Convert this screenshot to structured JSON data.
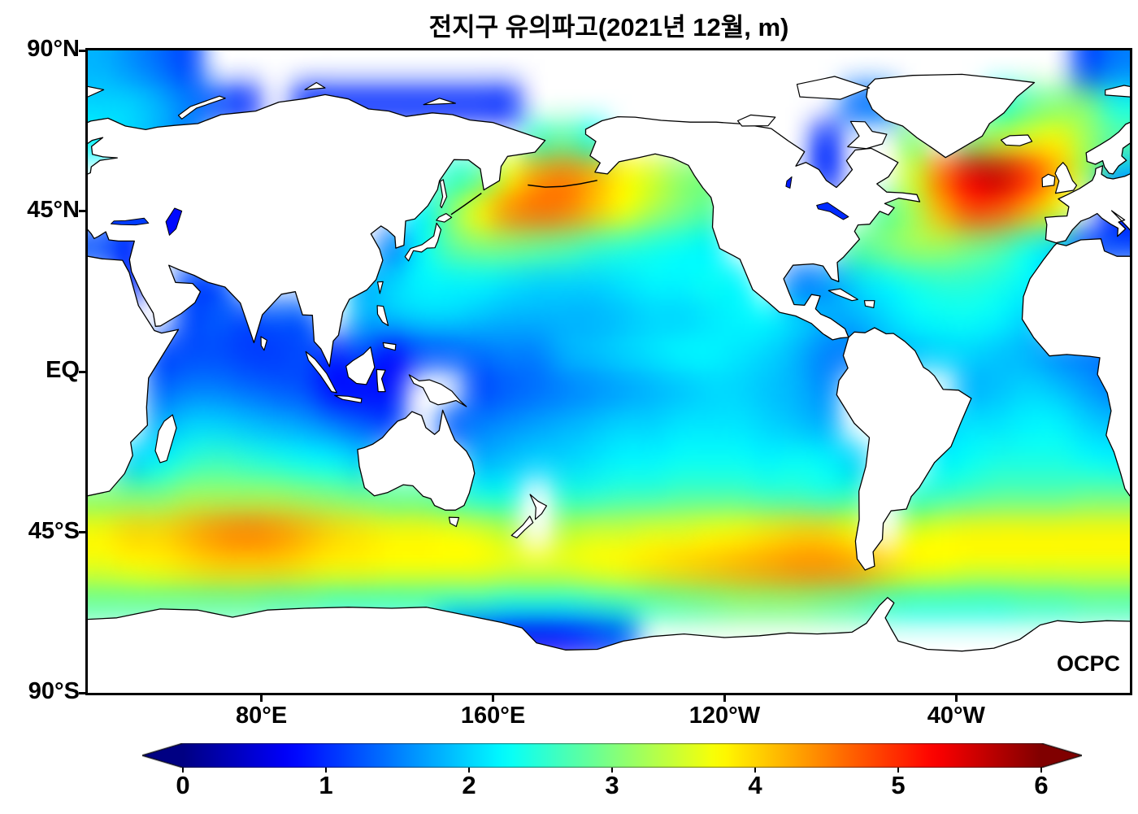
{
  "page": {
    "watermark": "OCPC"
  },
  "colors": {
    "background": "#ffffff",
    "text": "#000000",
    "coastline": "#000000"
  },
  "chart_data": {
    "type": "heatmap",
    "title": "전지구 유의파고(2021년 12월, m)",
    "variable": "significant wave height",
    "units": "m",
    "value_range": [
      0,
      6
    ],
    "colormap": {
      "name": "jet",
      "under": "#000083",
      "over": "#800000",
      "stops": [
        {
          "v": 0,
          "c": "#000083"
        },
        {
          "v": 0.75,
          "c": "#0000ff"
        },
        {
          "v": 2.25,
          "c": "#00ffff"
        },
        {
          "v": 3.75,
          "c": "#ffff00"
        },
        {
          "v": 5.25,
          "c": "#ff0000"
        },
        {
          "v": 6,
          "c": "#800000"
        }
      ]
    },
    "colorbar_ticks": [
      "0",
      "1",
      "2",
      "3",
      "4",
      "5",
      "6"
    ],
    "x_ticks": [
      {
        "label": "80°E",
        "lon": 80
      },
      {
        "label": "160°E",
        "lon": 160
      },
      {
        "label": "120°W",
        "lon": 240
      },
      {
        "label": "40°W",
        "lon": 320
      }
    ],
    "y_ticks": [
      {
        "label": "90°N",
        "lat": 90
      },
      {
        "label": "45°N",
        "lat": 45
      },
      {
        "label": "EQ",
        "lat": 0
      },
      {
        "label": "45°S",
        "lat": -45
      },
      {
        "label": "90°S",
        "lat": -90
      }
    ],
    "lon_range": [
      20,
      380
    ],
    "lat_range": [
      -90,
      90
    ],
    "lat_centers": [
      85,
      75,
      65,
      55,
      45,
      35,
      25,
      15,
      5,
      -5,
      -15,
      -25,
      -35,
      -45,
      -55,
      -65,
      -75,
      -85
    ],
    "lon_centers": [
      25,
      35,
      45,
      55,
      65,
      75,
      85,
      95,
      105,
      115,
      125,
      135,
      145,
      155,
      165,
      175,
      185,
      195,
      205,
      215,
      225,
      235,
      245,
      255,
      265,
      275,
      285,
      295,
      305,
      315,
      325,
      335,
      345,
      355,
      365,
      375
    ],
    "values_m": [
      [
        1.8,
        1.6,
        1.4,
        1.2,
        null,
        null,
        null,
        null,
        null,
        null,
        null,
        null,
        null,
        null,
        null,
        null,
        null,
        null,
        null,
        null,
        null,
        null,
        null,
        null,
        null,
        null,
        null,
        null,
        null,
        null,
        null,
        null,
        null,
        null,
        1.2,
        1.5
      ],
      [
        2.0,
        2.0,
        1.8,
        1.5,
        1.2,
        1.0,
        null,
        1.0,
        1.0,
        1.0,
        1.0,
        1.0,
        1.0,
        1.0,
        1.0,
        null,
        null,
        null,
        null,
        null,
        null,
        null,
        null,
        null,
        null,
        null,
        1.4,
        1.5,
        null,
        null,
        null,
        2.4,
        2.8,
        3.0,
        3.0,
        2.4
      ],
      [
        2.2,
        2.0,
        1.8,
        1.5,
        null,
        null,
        null,
        null,
        null,
        null,
        null,
        null,
        null,
        null,
        null,
        2.6,
        2.8,
        2.4,
        null,
        null,
        null,
        null,
        null,
        null,
        null,
        1.0,
        null,
        null,
        3.0,
        null,
        3.0,
        3.4,
        3.6,
        3.8,
        3.2,
        2.8
      ],
      [
        null,
        null,
        null,
        null,
        null,
        null,
        null,
        null,
        null,
        null,
        null,
        null,
        2.5,
        2.7,
        3.6,
        4.3,
        4.5,
        4.2,
        3.8,
        3.5,
        3.1,
        3.0,
        null,
        null,
        null,
        1.0,
        null,
        null,
        3.5,
        4.6,
        5.4,
        5.6,
        5.0,
        4.2,
        3.2,
        1.8
      ],
      [
        null,
        1.2,
        null,
        null,
        null,
        null,
        null,
        null,
        null,
        null,
        null,
        2.2,
        3.0,
        3.8,
        4.4,
        4.6,
        4.5,
        4.1,
        3.7,
        3.3,
        3.0,
        2.8,
        null,
        null,
        null,
        null,
        null,
        2.8,
        3.2,
        4.2,
        4.8,
        4.7,
        4.2,
        3.6,
        null,
        1.0
      ],
      [
        1.2,
        1.0,
        null,
        null,
        null,
        null,
        null,
        null,
        null,
        null,
        1.5,
        2.2,
        2.8,
        3.0,
        3.0,
        2.9,
        2.8,
        2.6,
        2.5,
        2.4,
        2.3,
        2.2,
        null,
        null,
        null,
        null,
        2.8,
        3.0,
        3.2,
        3.2,
        3.0,
        2.8,
        2.4,
        2.0,
        1.2,
        1.2
      ],
      [
        null,
        1.0,
        null,
        1.2,
        1.2,
        null,
        null,
        null,
        null,
        1.8,
        2.0,
        2.2,
        2.2,
        2.2,
        2.1,
        2.0,
        2.0,
        2.0,
        2.1,
        2.2,
        2.2,
        2.3,
        2.2,
        null,
        1.5,
        1.6,
        2.0,
        2.2,
        2.4,
        2.5,
        2.5,
        2.4,
        2.2,
        2.0,
        null,
        null
      ],
      [
        null,
        null,
        null,
        1.2,
        1.3,
        1.2,
        1.3,
        1.3,
        null,
        1.8,
        1.9,
        2.0,
        2.0,
        1.9,
        1.8,
        1.8,
        1.8,
        1.8,
        1.9,
        2.0,
        2.0,
        2.1,
        2.2,
        2.2,
        2.0,
        1.8,
        1.8,
        2.0,
        2.2,
        2.3,
        2.3,
        2.2,
        2.0,
        null,
        null,
        null
      ],
      [
        null,
        null,
        1.2,
        1.2,
        1.2,
        1.1,
        1.1,
        1.2,
        1.0,
        1.2,
        0.8,
        1.2,
        1.3,
        1.4,
        1.5,
        1.5,
        1.8,
        1.9,
        2.0,
        2.1,
        2.2,
        2.2,
        2.1,
        2.0,
        1.8,
        1.5,
        1.5,
        1.8,
        1.9,
        2.0,
        2.0,
        1.9,
        1.8,
        1.6,
        1.5,
        1.4
      ],
      [
        null,
        null,
        1.4,
        1.5,
        1.5,
        1.4,
        1.3,
        1.2,
        0.8,
        0.8,
        0.9,
        null,
        null,
        1.2,
        1.3,
        1.4,
        1.5,
        1.6,
        1.7,
        1.8,
        1.9,
        2.0,
        2.0,
        1.9,
        1.8,
        1.6,
        null,
        null,
        null,
        null,
        1.8,
        1.9,
        2.0,
        1.9,
        1.7,
        1.5
      ],
      [
        null,
        null,
        1.8,
        2.0,
        2.0,
        1.9,
        1.8,
        1.7,
        1.5,
        1.3,
        1.2,
        null,
        1.3,
        1.5,
        1.6,
        1.7,
        1.8,
        1.9,
        2.0,
        2.0,
        2.1,
        2.1,
        2.1,
        2.0,
        1.9,
        1.8,
        null,
        null,
        null,
        2.0,
        2.1,
        2.1,
        2.2,
        2.2,
        2.0,
        1.9
      ],
      [
        null,
        2.0,
        2.2,
        2.5,
        2.6,
        2.5,
        2.4,
        2.3,
        2.2,
        2.0,
        null,
        null,
        null,
        1.8,
        1.9,
        2.0,
        2.0,
        2.1,
        2.2,
        2.2,
        2.3,
        2.3,
        2.3,
        2.2,
        2.3,
        2.2,
        2.0,
        null,
        null,
        2.2,
        2.3,
        2.4,
        2.4,
        2.4,
        2.3,
        2.2
      ],
      [
        3.0,
        3.0,
        3.0,
        3.2,
        3.2,
        3.2,
        3.2,
        3.1,
        3.0,
        2.9,
        2.8,
        2.8,
        2.6,
        2.4,
        2.4,
        null,
        2.5,
        2.5,
        2.6,
        2.6,
        2.7,
        2.7,
        2.7,
        2.6,
        2.6,
        2.5,
        2.6,
        null,
        2.5,
        2.6,
        2.7,
        2.8,
        2.8,
        2.8,
        2.9,
        2.9
      ],
      [
        3.8,
        4.0,
        4.0,
        4.2,
        4.4,
        4.5,
        4.4,
        4.2,
        4.0,
        3.9,
        3.8,
        3.8,
        3.7,
        3.6,
        3.4,
        null,
        3.4,
        3.5,
        3.5,
        3.6,
        3.6,
        3.7,
        3.8,
        3.9,
        4.0,
        4.0,
        3.8,
        null,
        3.6,
        3.7,
        3.8,
        3.8,
        3.8,
        3.8,
        3.8,
        3.8
      ],
      [
        3.6,
        3.7,
        3.8,
        3.9,
        4.0,
        4.0,
        4.0,
        3.9,
        3.8,
        3.8,
        3.7,
        3.7,
        3.7,
        3.7,
        3.6,
        3.6,
        3.6,
        3.7,
        3.8,
        3.9,
        4.0,
        4.1,
        4.2,
        4.3,
        4.4,
        4.4,
        4.3,
        4.0,
        3.8,
        3.7,
        3.6,
        3.6,
        3.6,
        3.6,
        3.6,
        3.6
      ],
      [
        2.8,
        2.8,
        2.8,
        2.8,
        2.8,
        2.8,
        2.7,
        2.7,
        2.6,
        2.6,
        2.6,
        2.6,
        2.5,
        2.5,
        2.4,
        2.4,
        2.4,
        2.5,
        2.6,
        2.7,
        2.8,
        2.9,
        3.0,
        3.0,
        3.0,
        2.9,
        2.8,
        2.6,
        2.5,
        2.5,
        2.5,
        2.5,
        2.6,
        2.6,
        2.7,
        2.7
      ],
      [
        null,
        null,
        null,
        null,
        null,
        null,
        null,
        null,
        null,
        null,
        null,
        null,
        1.2,
        1.0,
        0.8,
        0.7,
        0.8,
        1.0,
        1.3,
        null,
        null,
        null,
        null,
        null,
        null,
        null,
        null,
        null,
        null,
        null,
        null,
        null,
        null,
        null,
        null,
        null
      ],
      [
        null,
        null,
        null,
        null,
        null,
        null,
        null,
        null,
        null,
        null,
        null,
        null,
        null,
        null,
        null,
        null,
        null,
        null,
        null,
        null,
        null,
        null,
        null,
        null,
        null,
        null,
        null,
        null,
        null,
        null,
        null,
        null,
        null,
        null,
        null,
        null
      ]
    ]
  }
}
